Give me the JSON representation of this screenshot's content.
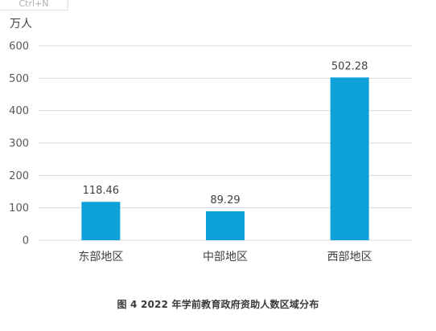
{
  "shortcut_hint": "Ctrl+N",
  "caption": "图 4  2022 年学前教育政府资助人数区域分布",
  "chart_data": {
    "type": "bar",
    "ylabel": "万人",
    "xlabel": "",
    "categories": [
      "东部地区",
      "中部地区",
      "西部地区"
    ],
    "values": [
      118.46,
      89.29,
      502.28
    ],
    "data_labels": [
      "118.46",
      "89.29",
      "502.28"
    ],
    "ylim": [
      0,
      600
    ],
    "yticks": [
      0,
      100,
      200,
      300,
      400,
      500,
      600
    ],
    "grid": true,
    "bar_color": "#0ea0d8",
    "grid_color": "#d9d9d9"
  }
}
